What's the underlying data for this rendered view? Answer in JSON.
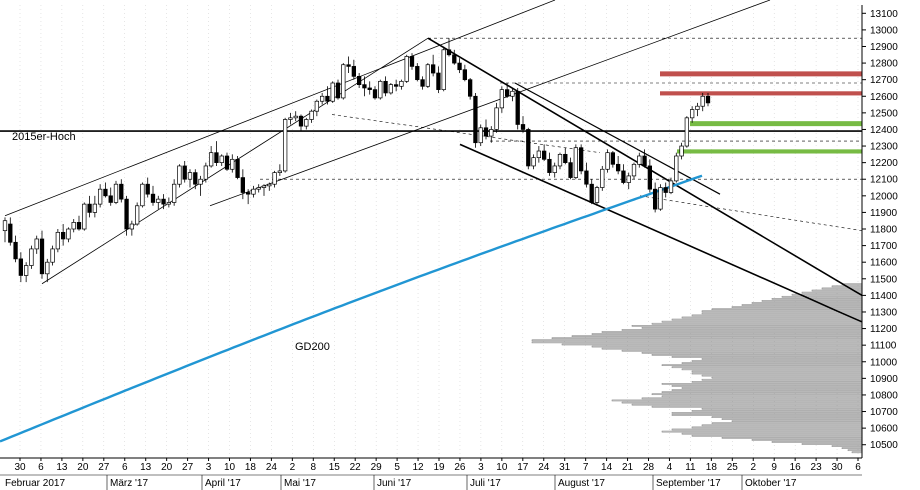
{
  "chart_data": {
    "type": "candlestick",
    "annotations": {
      "level_label": "2015er-Hoch",
      "ma_label": "GD200"
    },
    "colors": {
      "ma": "#2196d3",
      "resistance_zone": "#c0504d",
      "support_zone": "#77bb44",
      "volume_profile_fill": "#e6e6e6",
      "volume_profile_stroke": "#777777",
      "candle": "#000000",
      "grid": "#cccccc"
    },
    "y_axis": {
      "min": 10420,
      "max": 13150,
      "ticks": [
        10500,
        10600,
        10700,
        10800,
        10900,
        11000,
        11100,
        11200,
        11300,
        11400,
        11500,
        11600,
        11700,
        11800,
        11900,
        12000,
        12100,
        12200,
        12300,
        12400,
        12500,
        12600,
        12700,
        12800,
        12900,
        13000,
        13100
      ]
    },
    "x_axis": {
      "day_ticks": [
        "30",
        "6",
        "13",
        "20",
        "27",
        "6",
        "13",
        "20",
        "27",
        "3",
        "10",
        "18",
        "24",
        "2",
        "8",
        "15",
        "22",
        "29",
        "5",
        "12",
        "19",
        "26",
        "3",
        "10",
        "17",
        "24",
        "31",
        "7",
        "14",
        "21",
        "28",
        "4",
        "11",
        "18",
        "25",
        "2",
        "9",
        "16",
        "23",
        "30",
        "6"
      ],
      "month_labels": [
        "Februar 2017",
        "März '17",
        "April '17",
        "Mai '17",
        "Juni '17",
        "Juli '17",
        "August '17",
        "September '17",
        "Oktober '17"
      ]
    },
    "levels": {
      "hoch_2015": 12390
    },
    "zones": {
      "resistance": [
        [
          12720,
          12750
        ],
        [
          12605,
          12630
        ]
      ],
      "support": [
        [
          12420,
          12450
        ],
        [
          12255,
          12280
        ]
      ]
    },
    "ohlc": [
      [
        11790,
        11870,
        11720,
        11850
      ],
      [
        11830,
        11870,
        11700,
        11720
      ],
      [
        11720,
        11760,
        11600,
        11620
      ],
      [
        11620,
        11660,
        11480,
        11520
      ],
      [
        11520,
        11600,
        11480,
        11580
      ],
      [
        11580,
        11700,
        11560,
        11680
      ],
      [
        11680,
        11760,
        11650,
        11740
      ],
      [
        11740,
        11790,
        11500,
        11530
      ],
      [
        11530,
        11620,
        11480,
        11600
      ],
      [
        11600,
        11700,
        11580,
        11680
      ],
      [
        11680,
        11800,
        11660,
        11780
      ],
      [
        11780,
        11830,
        11700,
        11740
      ],
      [
        11740,
        11810,
        11720,
        11800
      ],
      [
        11800,
        11860,
        11780,
        11840
      ],
      [
        11840,
        11880,
        11790,
        11800
      ],
      [
        11800,
        11960,
        11790,
        11950
      ],
      [
        11950,
        12000,
        11870,
        11900
      ],
      [
        11900,
        12000,
        11870,
        11950
      ],
      [
        11950,
        12070,
        11930,
        12040
      ],
      [
        12040,
        12080,
        11990,
        12000
      ],
      [
        12000,
        12050,
        11940,
        11960
      ],
      [
        11960,
        12090,
        11950,
        12070
      ],
      [
        12070,
        12100,
        11960,
        11980
      ],
      [
        11980,
        12000,
        11760,
        11800
      ],
      [
        11800,
        11850,
        11760,
        11830
      ],
      [
        11830,
        11960,
        11820,
        11940
      ],
      [
        11940,
        12080,
        11930,
        12070
      ],
      [
        12070,
        12110,
        11990,
        12010
      ],
      [
        12010,
        12060,
        11940,
        11960
      ],
      [
        11960,
        12000,
        11920,
        11980
      ],
      [
        11980,
        12010,
        11920,
        11950
      ],
      [
        11950,
        11990,
        11930,
        11960
      ],
      [
        11960,
        12100,
        11940,
        12070
      ],
      [
        12070,
        12190,
        12050,
        12180
      ],
      [
        12180,
        12210,
        12080,
        12100
      ],
      [
        12100,
        12160,
        12050,
        12140
      ],
      [
        12140,
        12160,
        12040,
        12070
      ],
      [
        12070,
        12120,
        12000,
        12100
      ],
      [
        12100,
        12200,
        12080,
        12180
      ],
      [
        12180,
        12300,
        12170,
        12260
      ],
      [
        12260,
        12330,
        12180,
        12200
      ],
      [
        12200,
        12250,
        12180,
        12240
      ],
      [
        12240,
        12260,
        12150,
        12160
      ],
      [
        12160,
        12250,
        12140,
        12220
      ],
      [
        12220,
        12240,
        12100,
        12110
      ],
      [
        12110,
        12160,
        11980,
        12020
      ],
      [
        12020,
        12040,
        11950,
        12010
      ],
      [
        12010,
        12060,
        11990,
        12040
      ],
      [
        12040,
        12070,
        12020,
        12050
      ],
      [
        12050,
        12070,
        12000,
        12060
      ],
      [
        12060,
        12080,
        12030,
        12070
      ],
      [
        12070,
        12150,
        12050,
        12140
      ],
      [
        12140,
        12190,
        12120,
        12150
      ],
      [
        12150,
        12470,
        12140,
        12460
      ],
      [
        12460,
        12500,
        12430,
        12470
      ],
      [
        12470,
        12510,
        12450,
        12480
      ],
      [
        12480,
        12490,
        12390,
        12420
      ],
      [
        12420,
        12470,
        12400,
        12460
      ],
      [
        12460,
        12520,
        12440,
        12510
      ],
      [
        12510,
        12580,
        12480,
        12570
      ],
      [
        12570,
        12620,
        12550,
        12600
      ],
      [
        12600,
        12660,
        12550,
        12570
      ],
      [
        12570,
        12690,
        12560,
        12680
      ],
      [
        12680,
        12700,
        12580,
        12590
      ],
      [
        12590,
        12800,
        12580,
        12790
      ],
      [
        12790,
        12840,
        12740,
        12780
      ],
      [
        12780,
        12820,
        12700,
        12720
      ],
      [
        12720,
        12740,
        12650,
        12670
      ],
      [
        12670,
        12720,
        12600,
        12650
      ],
      [
        12650,
        12690,
        12610,
        12640
      ],
      [
        12640,
        12660,
        12580,
        12590
      ],
      [
        12590,
        12700,
        12580,
        12690
      ],
      [
        12690,
        12720,
        12600,
        12620
      ],
      [
        12620,
        12680,
        12610,
        12670
      ],
      [
        12670,
        12700,
        12630,
        12660
      ],
      [
        12660,
        12700,
        12640,
        12690
      ],
      [
        12690,
        12850,
        12680,
        12840
      ],
      [
        12840,
        12860,
        12760,
        12780
      ],
      [
        12780,
        12800,
        12690,
        12700
      ],
      [
        12700,
        12720,
        12640,
        12660
      ],
      [
        12660,
        12800,
        12650,
        12790
      ],
      [
        12790,
        12850,
        12720,
        12740
      ],
      [
        12740,
        12780,
        12620,
        12640
      ],
      [
        12640,
        12900,
        12630,
        12880
      ],
      [
        12880,
        12950,
        12840,
        12850
      ],
      [
        12850,
        12880,
        12790,
        12800
      ],
      [
        12800,
        12830,
        12740,
        12760
      ],
      [
        12760,
        12790,
        12690,
        12700
      ],
      [
        12700,
        12710,
        12580,
        12600
      ],
      [
        12600,
        12620,
        12290,
        12320
      ],
      [
        12320,
        12430,
        12300,
        12410
      ],
      [
        12410,
        12460,
        12340,
        12360
      ],
      [
        12360,
        12420,
        12320,
        12400
      ],
      [
        12400,
        12560,
        12380,
        12530
      ],
      [
        12530,
        12660,
        12500,
        12640
      ],
      [
        12640,
        12680,
        12590,
        12600
      ],
      [
        12600,
        12650,
        12570,
        12630
      ],
      [
        12630,
        12650,
        12400,
        12430
      ],
      [
        12430,
        12480,
        12380,
        12400
      ],
      [
        12400,
        12410,
        12160,
        12180
      ],
      [
        12180,
        12250,
        12160,
        12230
      ],
      [
        12230,
        12300,
        12200,
        12270
      ],
      [
        12270,
        12310,
        12210,
        12220
      ],
      [
        12220,
        12260,
        12120,
        12140
      ],
      [
        12140,
        12200,
        12110,
        12180
      ],
      [
        12180,
        12260,
        12160,
        12250
      ],
      [
        12250,
        12290,
        12190,
        12200
      ],
      [
        12200,
        12230,
        12100,
        12110
      ],
      [
        12110,
        12310,
        12100,
        12290
      ],
      [
        12290,
        12310,
        12130,
        12150
      ],
      [
        12150,
        12200,
        12050,
        12070
      ],
      [
        12070,
        12100,
        11950,
        11960
      ],
      [
        11960,
        12060,
        11940,
        12050
      ],
      [
        12050,
        12180,
        12030,
        12160
      ],
      [
        12160,
        12280,
        12140,
        12260
      ],
      [
        12260,
        12270,
        12170,
        12190
      ],
      [
        12190,
        12240,
        12130,
        12150
      ],
      [
        12150,
        12190,
        12070,
        12080
      ],
      [
        12080,
        12140,
        12040,
        12120
      ],
      [
        12120,
        12200,
        12100,
        12190
      ],
      [
        12190,
        12260,
        12170,
        12240
      ],
      [
        12240,
        12280,
        12170,
        12180
      ],
      [
        12180,
        12220,
        12020,
        12040
      ],
      [
        12040,
        12080,
        11900,
        11920
      ],
      [
        11920,
        12070,
        11910,
        12050
      ],
      [
        12050,
        12080,
        11990,
        12020
      ],
      [
        12020,
        12110,
        12010,
        12090
      ],
      [
        12090,
        12260,
        12080,
        12240
      ],
      [
        12240,
        12320,
        12220,
        12300
      ],
      [
        12300,
        12480,
        12290,
        12470
      ],
      [
        12470,
        12540,
        12440,
        12520
      ],
      [
        12520,
        12560,
        12480,
        12540
      ],
      [
        12540,
        12620,
        12510,
        12600
      ],
      [
        12600,
        12620,
        12540,
        12560
      ]
    ]
  }
}
